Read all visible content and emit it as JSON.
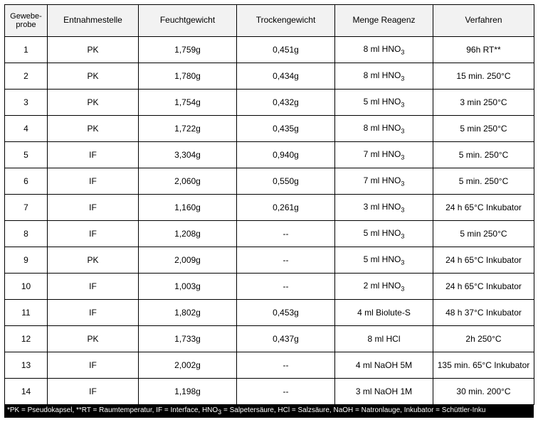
{
  "columns": [
    "Gewebe-\nprobe",
    "Entnahmestelle",
    "Feuchtgewicht",
    "Trockengewicht",
    "Menge Reagenz",
    "Verfahren"
  ],
  "rows": [
    {
      "n": "1",
      "site": "PK",
      "wet": "1,759g",
      "dry": "0,451g",
      "reagent": "8 ml HNO₃",
      "proc": "96h RT**"
    },
    {
      "n": "2",
      "site": "PK",
      "wet": "1,780g",
      "dry": "0,434g",
      "reagent": "8 ml HNO₃",
      "proc": "15 min. 250°C"
    },
    {
      "n": "3",
      "site": "PK",
      "wet": "1,754g",
      "dry": "0,432g",
      "reagent": "5 ml HNO₃",
      "proc": "3 min 250°C"
    },
    {
      "n": "4",
      "site": "PK",
      "wet": "1,722g",
      "dry": "0,435g",
      "reagent": "8 ml HNO₃",
      "proc": "5 min 250°C"
    },
    {
      "n": "5",
      "site": "IF",
      "wet": "3,304g",
      "dry": "0,940g",
      "reagent": "7 ml HNO₃",
      "proc": "5 min. 250°C"
    },
    {
      "n": "6",
      "site": "IF",
      "wet": "2,060g",
      "dry": "0,550g",
      "reagent": "7 ml HNO₃",
      "proc": "5 min. 250°C"
    },
    {
      "n": "7",
      "site": "IF",
      "wet": "1,160g",
      "dry": "0,261g",
      "reagent": "3 ml HNO₃",
      "proc": "24 h 65°C Inkubator"
    },
    {
      "n": "8",
      "site": "IF",
      "wet": "1,208g",
      "dry": "--",
      "reagent": "5 ml HNO₃",
      "proc": "5 min 250°C"
    },
    {
      "n": "9",
      "site": "PK",
      "wet": "2,009g",
      "dry": "--",
      "reagent": "5 ml HNO₃",
      "proc": "24 h 65°C Inkubator"
    },
    {
      "n": "10",
      "site": "IF",
      "wet": "1,003g",
      "dry": "--",
      "reagent": "2 ml HNO₃",
      "proc": "24 h 65°C Inkubator"
    },
    {
      "n": "11",
      "site": "IF",
      "wet": "1,802g",
      "dry": "0,453g",
      "reagent": "4 ml Biolute-S",
      "proc": "48 h 37°C Inkubator"
    },
    {
      "n": "12",
      "site": "PK",
      "wet": "1,733g",
      "dry": "0,437g",
      "reagent": "8 ml HCl",
      "proc": "2h 250°C"
    },
    {
      "n": "13",
      "site": "IF",
      "wet": "2,002g",
      "dry": "--",
      "reagent": "4 ml NaOH 5M",
      "proc": "135 min. 65°C Inkubator"
    },
    {
      "n": "14",
      "site": "IF",
      "wet": "1,198g",
      "dry": "--",
      "reagent": "3 ml NaOH 1M",
      "proc": "30 min. 200°C"
    }
  ],
  "footnote": "*PK = Pseudokapsel, **RT = Raumtemperatur, IF = Interface, HNO₃ = Salpetersäure, HCl = Salzsäure, NaOH = Natronlauge, Inkubator = Schüttler-Inku"
}
